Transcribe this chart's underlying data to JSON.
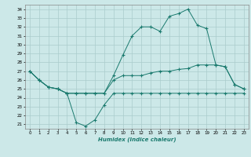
{
  "bg_color": "#cce8e8",
  "grid_color": "#aacccc",
  "line_color": "#1a7a6e",
  "xlabel": "Humidex (Indice chaleur)",
  "xlim": [
    -0.5,
    23.5
  ],
  "ylim": [
    20.5,
    34.5
  ],
  "yticks": [
    21,
    22,
    23,
    24,
    25,
    26,
    27,
    28,
    29,
    30,
    31,
    32,
    33,
    34
  ],
  "xticks": [
    0,
    1,
    2,
    3,
    4,
    5,
    6,
    7,
    8,
    9,
    10,
    11,
    12,
    13,
    14,
    15,
    16,
    17,
    18,
    19,
    20,
    21,
    22,
    23
  ],
  "line1_x": [
    0,
    1,
    2,
    3,
    4,
    5,
    6,
    7,
    8,
    9,
    10,
    11,
    12,
    13,
    14,
    15,
    16,
    17,
    18,
    19,
    20,
    21,
    22,
    23
  ],
  "line1_y": [
    27.0,
    26.0,
    25.2,
    25.0,
    24.5,
    21.2,
    20.8,
    21.5,
    23.2,
    24.5,
    24.5,
    24.5,
    24.5,
    24.5,
    24.5,
    24.5,
    24.5,
    24.5,
    24.5,
    24.5,
    24.5,
    24.5,
    24.5,
    24.5
  ],
  "line2_x": [
    0,
    1,
    2,
    3,
    4,
    5,
    6,
    7,
    8,
    9,
    10,
    11,
    12,
    13,
    14,
    15,
    16,
    17,
    18,
    19,
    20,
    21,
    22,
    23
  ],
  "line2_y": [
    27.0,
    26.0,
    25.2,
    25.0,
    24.5,
    24.5,
    24.5,
    24.5,
    24.5,
    26.5,
    28.8,
    31.0,
    32.0,
    32.0,
    31.5,
    33.2,
    33.5,
    34.0,
    32.2,
    31.8,
    27.7,
    27.5,
    25.5,
    25.0
  ],
  "line3_x": [
    0,
    1,
    2,
    3,
    4,
    5,
    6,
    7,
    8,
    9,
    10,
    11,
    12,
    13,
    14,
    15,
    16,
    17,
    18,
    19,
    20,
    21,
    22,
    23
  ],
  "line3_y": [
    27.0,
    26.0,
    25.2,
    25.0,
    24.5,
    24.5,
    24.5,
    24.5,
    24.5,
    26.0,
    26.5,
    26.5,
    26.5,
    26.8,
    27.0,
    27.0,
    27.2,
    27.3,
    27.7,
    27.7,
    27.7,
    27.5,
    25.5,
    25.0
  ]
}
